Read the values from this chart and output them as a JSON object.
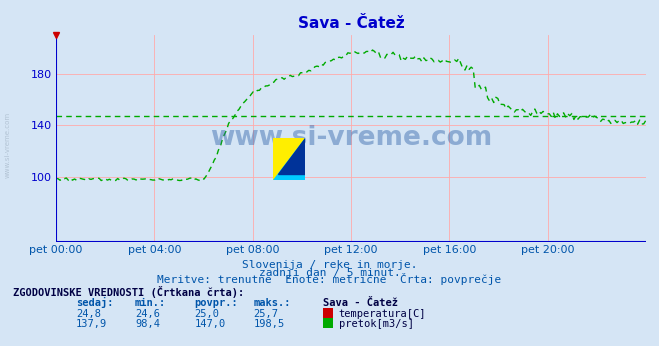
{
  "title": "Sava - Čatež",
  "title_color": "#0000cc",
  "bg_color": "#d5e5f5",
  "grid_color": "#ffaaaa",
  "axis_color": "#0000cc",
  "line_color": "#00aa00",
  "xlabel_color": "#0055aa",
  "text_color": "#0055aa",
  "watermark_text": "www.si-vreme.com",
  "watermark_color": "#3366aa",
  "side_text": "www.si-vreme.com",
  "yticks": [
    100,
    140,
    180
  ],
  "ylim": [
    50,
    210
  ],
  "xlim": [
    0,
    24
  ],
  "xtick_positions": [
    0,
    4,
    8,
    12,
    16,
    20
  ],
  "xtick_labels": [
    "pet 00:00",
    "pet 04:00",
    "pet 08:00",
    "pet 12:00",
    "pet 16:00",
    "pet 20:00"
  ],
  "subtitle1": "Slovenija / reke in morje.",
  "subtitle2": "zadnji dan / 5 minut.",
  "subtitle3": "Meritve: trenutne  Enote: metrične  Črta: povprečje",
  "table_header": "ZGODOVINSKE VREDNOSTI (Črtkana črta):",
  "col_headers": [
    "sedaj:",
    "min.:",
    "povpr.:",
    "maks.:"
  ],
  "row1_vals": [
    "24,8",
    "24,6",
    "25,0",
    "25,7"
  ],
  "row2_vals": [
    "137,9",
    "98,4",
    "147,0",
    "198,5"
  ],
  "legend_station": "Sava - Čatež",
  "legend_temp": "temperatura[C]",
  "legend_flow": "pretok[m3/s]",
  "avg_flow": 147.0,
  "temp_color": "#cc0000",
  "flow_color": "#00aa00",
  "logo_yellow": "#ffee00",
  "logo_cyan": "#00ccff",
  "logo_blue": "#003399"
}
